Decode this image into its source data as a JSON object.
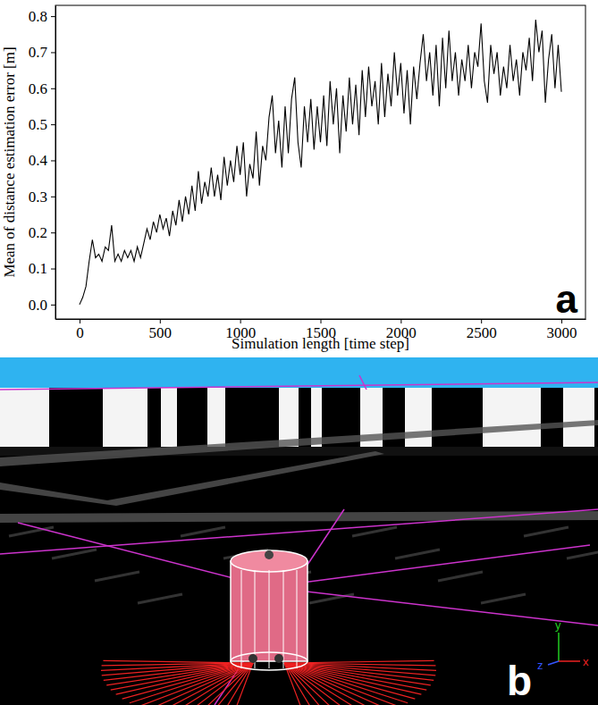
{
  "chart_data": {
    "type": "line",
    "x_label": "Simulation length [time step]",
    "y_label": "Mean of distance estimation error [m]",
    "x": [
      0,
      20,
      40,
      60,
      80,
      100,
      120,
      140,
      160,
      180,
      200,
      220,
      240,
      260,
      280,
      300,
      320,
      340,
      360,
      380,
      400,
      420,
      440,
      460,
      480,
      500,
      520,
      540,
      560,
      580,
      600,
      620,
      640,
      660,
      680,
      700,
      720,
      740,
      760,
      780,
      800,
      820,
      840,
      860,
      880,
      900,
      920,
      940,
      960,
      980,
      1000,
      1020,
      1040,
      1060,
      1080,
      1100,
      1120,
      1140,
      1160,
      1180,
      1200,
      1220,
      1240,
      1260,
      1280,
      1300,
      1320,
      1340,
      1360,
      1380,
      1400,
      1420,
      1440,
      1460,
      1480,
      1500,
      1520,
      1540,
      1560,
      1580,
      1600,
      1620,
      1640,
      1660,
      1680,
      1700,
      1720,
      1740,
      1760,
      1780,
      1800,
      1820,
      1840,
      1860,
      1880,
      1900,
      1920,
      1940,
      1960,
      1980,
      2000,
      2020,
      2040,
      2060,
      2080,
      2100,
      2120,
      2140,
      2160,
      2180,
      2200,
      2220,
      2240,
      2260,
      2280,
      2300,
      2320,
      2340,
      2360,
      2380,
      2400,
      2420,
      2440,
      2460,
      2480,
      2500,
      2520,
      2540,
      2560,
      2580,
      2600,
      2620,
      2640,
      2660,
      2680,
      2700,
      2720,
      2740,
      2760,
      2780,
      2800,
      2820,
      2840,
      2860,
      2880,
      2900,
      2920,
      2940,
      2960,
      2980,
      3000
    ],
    "values": [
      0.0,
      0.02,
      0.05,
      0.12,
      0.18,
      0.13,
      0.14,
      0.12,
      0.16,
      0.15,
      0.22,
      0.12,
      0.14,
      0.12,
      0.15,
      0.13,
      0.15,
      0.12,
      0.16,
      0.13,
      0.17,
      0.21,
      0.18,
      0.23,
      0.2,
      0.25,
      0.21,
      0.24,
      0.19,
      0.26,
      0.22,
      0.29,
      0.23,
      0.3,
      0.25,
      0.33,
      0.26,
      0.37,
      0.28,
      0.34,
      0.3,
      0.38,
      0.3,
      0.36,
      0.29,
      0.41,
      0.33,
      0.4,
      0.34,
      0.44,
      0.36,
      0.45,
      0.3,
      0.39,
      0.35,
      0.48,
      0.33,
      0.44,
      0.4,
      0.52,
      0.58,
      0.42,
      0.51,
      0.38,
      0.55,
      0.42,
      0.57,
      0.63,
      0.45,
      0.38,
      0.55,
      0.45,
      0.57,
      0.43,
      0.55,
      0.45,
      0.58,
      0.44,
      0.62,
      0.5,
      0.6,
      0.42,
      0.58,
      0.48,
      0.63,
      0.5,
      0.61,
      0.47,
      0.65,
      0.52,
      0.66,
      0.55,
      0.62,
      0.5,
      0.67,
      0.52,
      0.64,
      0.55,
      0.7,
      0.58,
      0.67,
      0.53,
      0.65,
      0.5,
      0.66,
      0.57,
      0.67,
      0.75,
      0.62,
      0.7,
      0.58,
      0.72,
      0.55,
      0.74,
      0.6,
      0.76,
      0.62,
      0.7,
      0.58,
      0.68,
      0.62,
      0.72,
      0.6,
      0.7,
      0.66,
      0.78,
      0.62,
      0.56,
      0.72,
      0.64,
      0.7,
      0.58,
      0.66,
      0.6,
      0.72,
      0.62,
      0.68,
      0.58,
      0.7,
      0.65,
      0.74,
      0.62,
      0.79,
      0.7,
      0.76,
      0.56,
      0.68,
      0.75,
      0.6,
      0.72,
      0.59
    ],
    "color": "#000000",
    "xlim": [
      -150,
      3150
    ],
    "ylim": [
      -0.04,
      0.83
    ],
    "xticks": [
      0,
      500,
      1000,
      1500,
      2000,
      2500,
      3000
    ],
    "yticks": [
      {
        "value": 0,
        "label": "0.0"
      },
      0.1,
      0.2,
      0.3,
      0.4,
      0.5,
      0.6,
      0.7,
      0.8
    ],
    "grid": false
  },
  "panel_labels": [
    "a",
    "b"
  ],
  "screenshot": {
    "axis_labels": {
      "y": "y",
      "z": "z",
      "x": "x"
    }
  }
}
